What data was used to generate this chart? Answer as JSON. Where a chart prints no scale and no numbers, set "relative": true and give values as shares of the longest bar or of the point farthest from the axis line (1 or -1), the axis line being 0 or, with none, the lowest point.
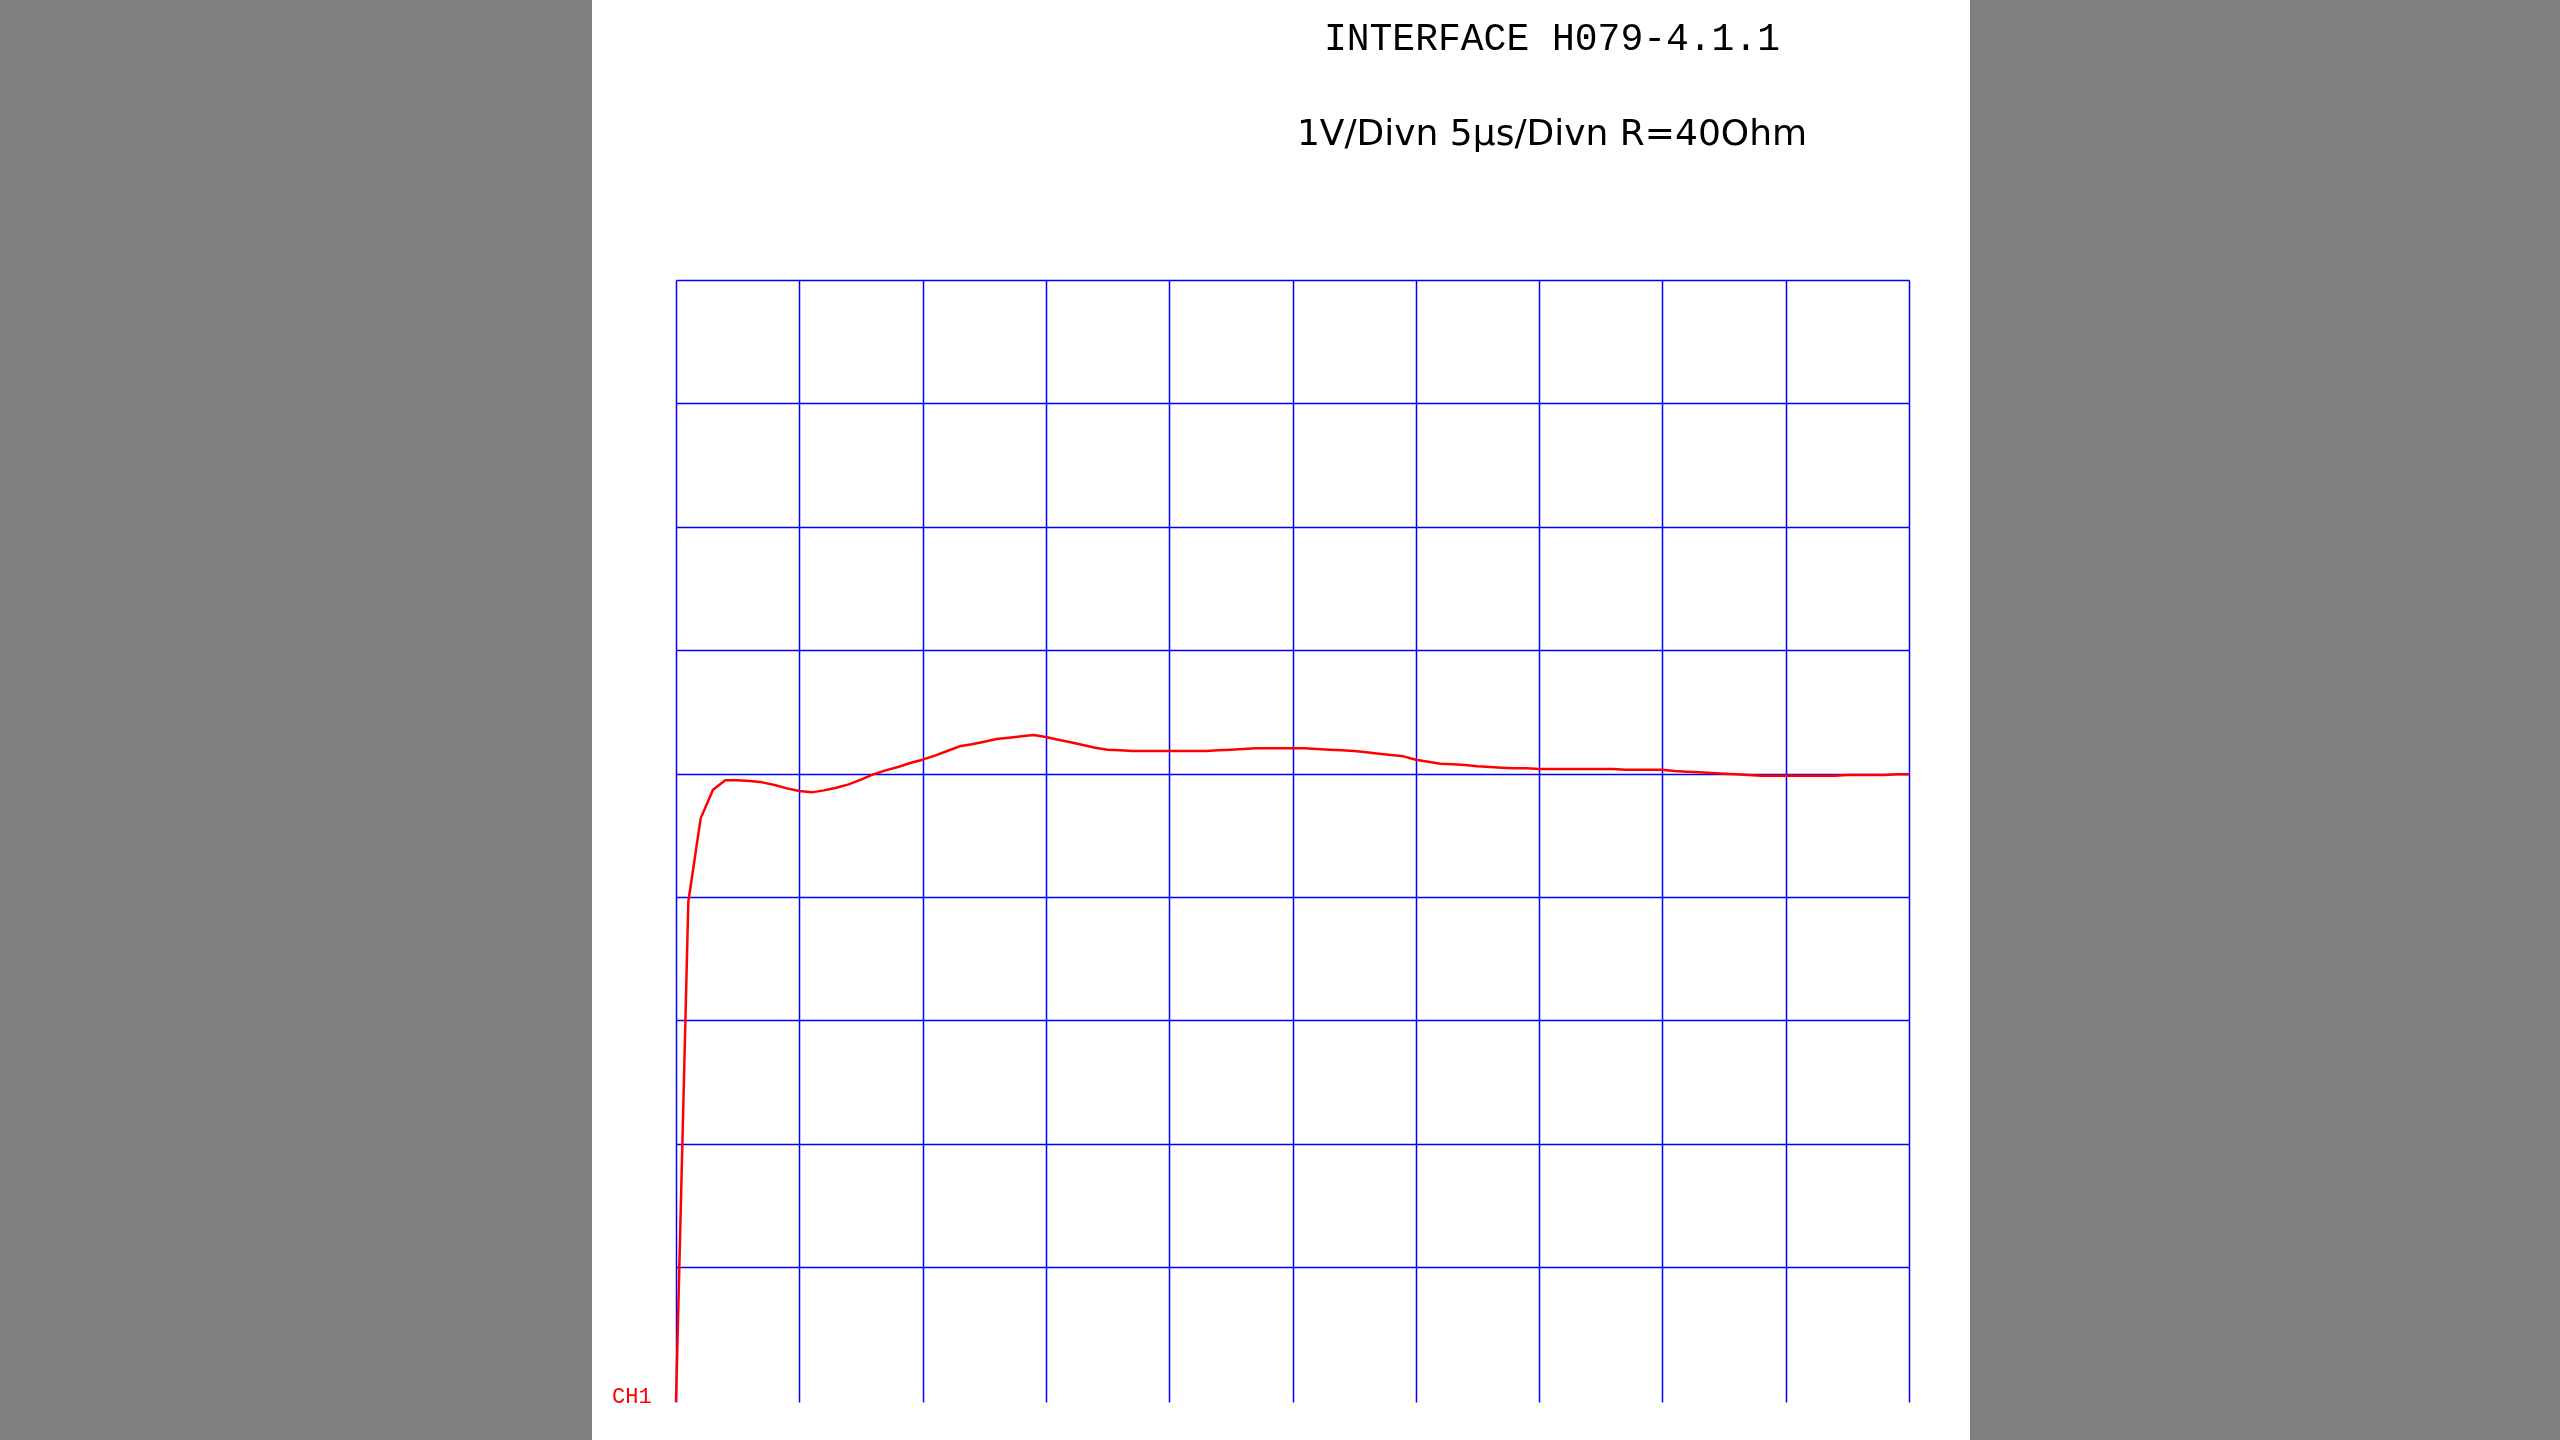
{
  "chart_data": {
    "type": "line",
    "title": "INTERFACE H079-4.1.1",
    "subtitle": "1V/Divn 5µs/Divn R=40Ohm",
    "relative": true,
    "grid": true,
    "annotations": [
      "CH1"
    ],
    "categories": [
      null,
      null,
      null,
      null,
      null,
      null,
      null,
      null,
      null,
      null,
      null,
      null,
      null,
      null,
      null,
      null,
      null,
      null,
      null,
      null,
      null,
      null,
      null,
      null,
      null,
      null,
      null,
      null,
      null,
      null,
      null,
      null,
      null,
      null,
      null,
      null,
      null,
      null,
      null,
      null,
      null,
      null,
      null,
      null,
      null,
      null,
      null,
      null,
      null,
      null,
      null,
      null,
      null,
      null,
      null,
      null,
      null,
      null,
      null,
      null,
      null,
      null,
      null,
      null,
      null,
      null,
      null,
      null,
      null,
      null,
      null,
      null,
      null,
      null,
      null,
      null,
      null,
      null,
      null,
      null,
      null,
      null,
      null,
      null,
      null,
      null,
      null,
      null,
      null,
      null,
      null,
      null,
      null,
      null,
      null,
      null,
      null,
      null,
      null,
      null,
      null
    ],
    "series": [
      {
        "color": "#ff0000",
        "values": [
          0,
          0.75,
          0.875,
          0.918,
          0.932,
          0.932,
          0.931,
          0.929,
          0.925,
          0.92,
          0.916,
          0.914,
          0.917,
          0.921,
          0.926,
          0.933,
          0.941,
          0.947,
          0.952,
          0.958,
          0.963,
          0.969,
          0.976,
          0.983,
          0.986,
          0.99,
          0.994,
          0.996,
          0.998,
          1,
          0.997,
          0.993,
          0.989,
          0.985,
          0.981,
          0.978,
          0.977,
          0.976,
          0.976,
          0.976,
          0.976,
          0.976,
          0.976,
          0.976,
          0.977,
          0.978,
          0.979,
          0.98,
          0.98,
          0.98,
          0.98,
          0.98,
          0.979,
          0.978,
          0.977,
          0.976,
          0.974,
          0.972,
          0.97,
          0.968,
          0.963,
          0.96,
          0.957,
          0.956,
          0.955,
          0.953,
          0.952,
          0.951,
          0.95,
          0.95,
          0.949,
          0.949,
          0.949,
          0.949,
          0.949,
          0.949,
          0.949,
          0.948,
          0.948,
          0.948,
          0.948,
          0.946,
          0.945,
          0.944,
          0.943,
          0.942,
          0.941,
          0.94,
          0.939,
          0.939,
          0.939,
          0.939,
          0.939,
          0.939,
          0.939,
          0.94,
          0.94,
          0.94,
          0.94,
          0.941,
          0.941
        ]
      }
    ]
  }
}
